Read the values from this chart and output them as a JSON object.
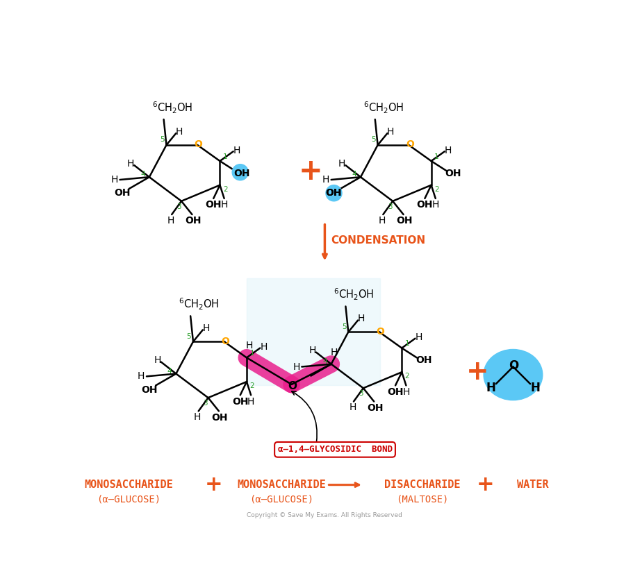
{
  "bg_color": "#ffffff",
  "orange": "#E8541A",
  "green": "#2ca02c",
  "amber": "#FFA500",
  "cyan": "#5BC8F5",
  "pink": "#E91E8C",
  "red": "#CC0000",
  "black": "#000000",
  "gray": "#999999",
  "light_cyan_bg": "#E0F4FB",
  "condensation_text": "CONDENSATION",
  "bottom_label1a": "MONOSACCHARIDE",
  "bottom_label1b": "(α–GLUCOSE)",
  "bottom_label2a": "MONOSACCHARIDE",
  "bottom_label2b": "(α–GLUCOSE)",
  "bottom_label3a": "DISACCHARIDE",
  "bottom_label3b": "(MALTOSE)",
  "bottom_label4": "WATER",
  "glycosidic_label": "α–1,4–GLYCOSIDIC  BOND",
  "copyright": "Copyright © Save My Exams. All Rights Reserved"
}
